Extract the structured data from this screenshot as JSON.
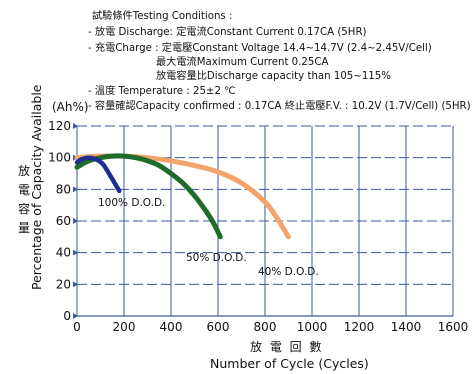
{
  "conditions": {
    "heading": "試驗條件Testing Conditions :",
    "line1": "- 放電 Discharge: 定電流Constant Current 0.17CA (5HR)",
    "line2": "- 充電Charge : 定電壓Constant Voltage 14.4~14.7V (2.4~2.45V/Cell)",
    "line3": "最大電流Maximum Current 0.25CA",
    "line4": "放電容量比Discharge capacity than 105~115%",
    "line5": "- 溫度 Temperature : 25±2 ℃",
    "line6": "- 容量確認Capacity confirmed : 0.17CA      終止電壓F.V. : 10.2V (1.7V/Cell) (5HR)"
  },
  "chart_data": {
    "type": "line",
    "title": "",
    "xlabel": "Number of Cycle (Cycles)",
    "xlabel_cjk": "放 電 回 數",
    "ylabel": "Percentage of Capacity Available",
    "ylabel_cjk": "放 電 容 量",
    "y_unit": "(Ah%)",
    "xlim": [
      0,
      1600
    ],
    "ylim": [
      0,
      120
    ],
    "x_ticks": [
      "0",
      "200",
      "400",
      "600",
      "800",
      "1000",
      "1200",
      "1400",
      "1600"
    ],
    "y_ticks": [
      "0",
      "20",
      "40",
      "60",
      "80",
      "100",
      "120"
    ],
    "grid": true,
    "series": [
      {
        "name": "100% D.O.D.",
        "color": "#1f2d8f",
        "points": [
          [
            0,
            97
          ],
          [
            20,
            99
          ],
          [
            50,
            100
          ],
          [
            80,
            99
          ],
          [
            110,
            96
          ],
          [
            140,
            89
          ],
          [
            160,
            84
          ],
          [
            180,
            79
          ]
        ]
      },
      {
        "name": "50% D.O.D.",
        "color": "#1f6b2a",
        "points": [
          [
            0,
            94
          ],
          [
            50,
            98
          ],
          [
            100,
            100
          ],
          [
            150,
            101
          ],
          [
            200,
            101
          ],
          [
            250,
            100
          ],
          [
            300,
            98
          ],
          [
            350,
            95
          ],
          [
            400,
            90
          ],
          [
            450,
            84
          ],
          [
            500,
            76
          ],
          [
            550,
            66
          ],
          [
            580,
            59
          ],
          [
            610,
            50
          ]
        ]
      },
      {
        "name": "40% D.O.D.",
        "color": "#f4a46a",
        "points": [
          [
            0,
            100
          ],
          [
            100,
            101
          ],
          [
            200,
            101
          ],
          [
            300,
            100
          ],
          [
            400,
            98
          ],
          [
            500,
            95
          ],
          [
            600,
            91
          ],
          [
            700,
            84
          ],
          [
            800,
            72
          ],
          [
            850,
            62
          ],
          [
            900,
            50
          ]
        ]
      }
    ]
  }
}
